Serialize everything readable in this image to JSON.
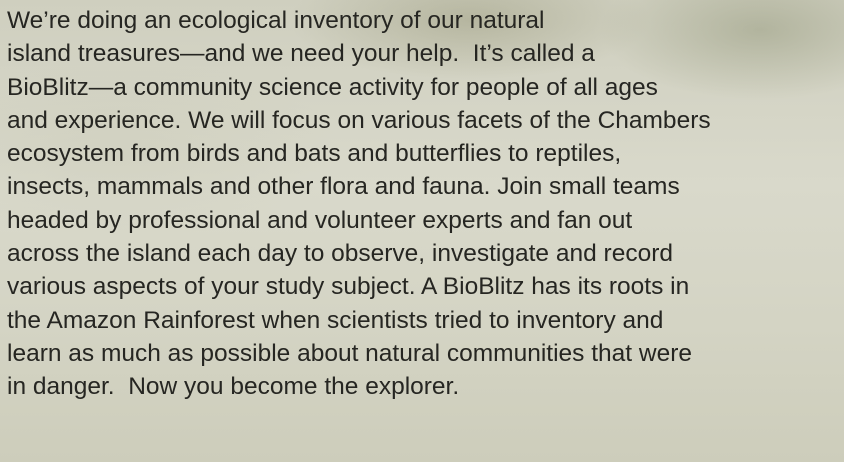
{
  "document": {
    "paragraph": {
      "lines": [
        "We’re doing an ecological inventory of our natural",
        "island treasures—and we need your help.  It’s called a",
        "BioBlitz—a community science activity for people of all ages",
        "and experience. We will focus on various facets of the Chambers",
        "ecosystem from birds and bats and butterflies to reptiles,",
        "insects, mammals and other flora and fauna. Join small teams",
        "headed by professional and volunteer experts and fan out",
        "across the island each day to observe, investigate and record",
        "various aspects of your study subject. A BioBlitz has its roots in",
        "the Amazon Rainforest when scientists tried to inventory and",
        "learn as much as possible about natural communities that were",
        "in danger.  Now you become the explorer."
      ]
    }
  }
}
